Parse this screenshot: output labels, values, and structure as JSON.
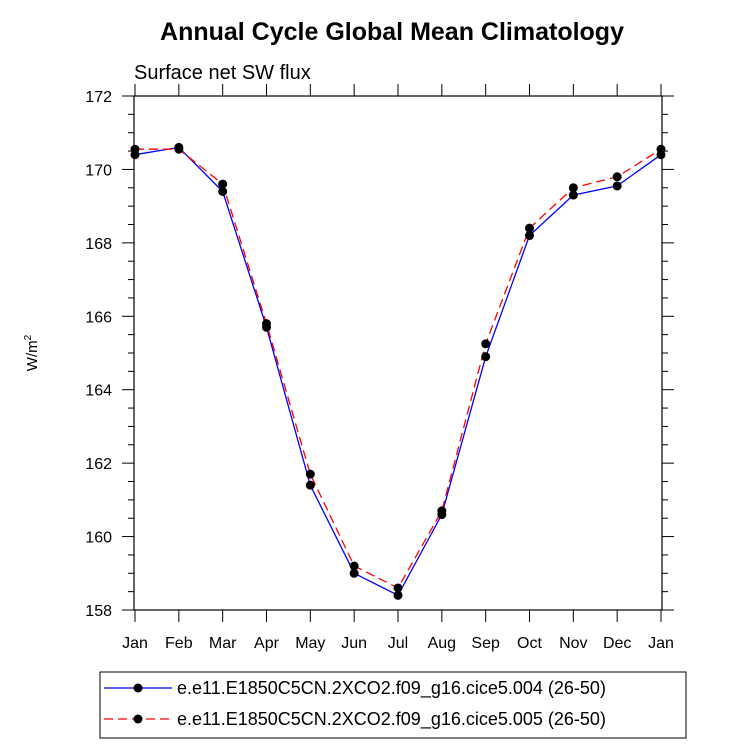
{
  "chart_data": {
    "type": "line",
    "title": "Annual Cycle Global Mean Climatology",
    "subtitle": "Surface net SW flux",
    "ylabel": "W/m",
    "ylabel_sup": "2",
    "xlabel": "",
    "categories": [
      "Jan",
      "Feb",
      "Mar",
      "Apr",
      "May",
      "Jun",
      "Jul",
      "Aug",
      "Sep",
      "Oct",
      "Nov",
      "Dec",
      "Jan"
    ],
    "ylim": [
      158,
      172
    ],
    "yticks": [
      158,
      160,
      162,
      164,
      166,
      168,
      170,
      172
    ],
    "series": [
      {
        "name": "e.e11.E1850C5CN.2XCO2.f09_g16.cice5.004 (26-50)",
        "color": "#0000ff",
        "dash": "solid",
        "values": [
          170.4,
          170.6,
          169.4,
          165.7,
          161.4,
          159.0,
          158.4,
          160.6,
          164.9,
          168.2,
          169.3,
          169.55,
          170.4
        ]
      },
      {
        "name": "e.e11.E1850C5CN.2XCO2.f09_g16.cice5.005 (26-50)",
        "color": "#ff0000",
        "dash": "dashed",
        "values": [
          170.55,
          170.55,
          169.6,
          165.8,
          161.7,
          159.2,
          158.6,
          160.7,
          165.25,
          168.4,
          169.5,
          169.8,
          170.55
        ]
      }
    ],
    "legend_position": "bottom"
  }
}
